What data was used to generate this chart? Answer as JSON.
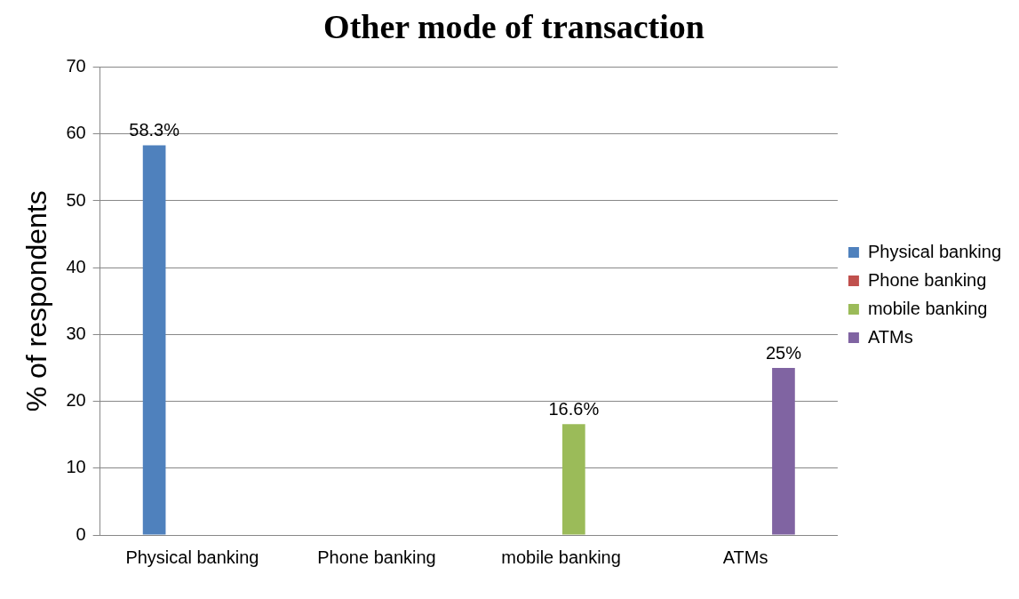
{
  "chart_data": {
    "type": "bar",
    "title": "Other mode of transaction",
    "ylabel": "% of respondents",
    "categories": [
      "Physical banking",
      "Phone banking",
      "mobile banking",
      "ATMs"
    ],
    "series": [
      {
        "name": "Physical banking",
        "color": "#4f81bd",
        "values": [
          58.3,
          null,
          null,
          null
        ],
        "value_labels": [
          "58.3%",
          null,
          null,
          null
        ]
      },
      {
        "name": "Phone banking",
        "color": "#c0504d",
        "values": [
          null,
          null,
          null,
          null
        ]
      },
      {
        "name": "mobile banking",
        "color": "#9bbb59",
        "values": [
          null,
          null,
          16.6,
          null
        ],
        "value_labels": [
          null,
          null,
          "16.6%",
          null
        ]
      },
      {
        "name": "ATMs",
        "color": "#8064a2",
        "values": [
          null,
          null,
          null,
          25
        ],
        "value_labels": [
          null,
          null,
          null,
          "25%"
        ]
      }
    ],
    "ylim": [
      0,
      70
    ],
    "yticks": [
      0,
      10,
      20,
      30,
      40,
      50,
      60,
      70
    ],
    "grid": "y",
    "legend": "right"
  }
}
